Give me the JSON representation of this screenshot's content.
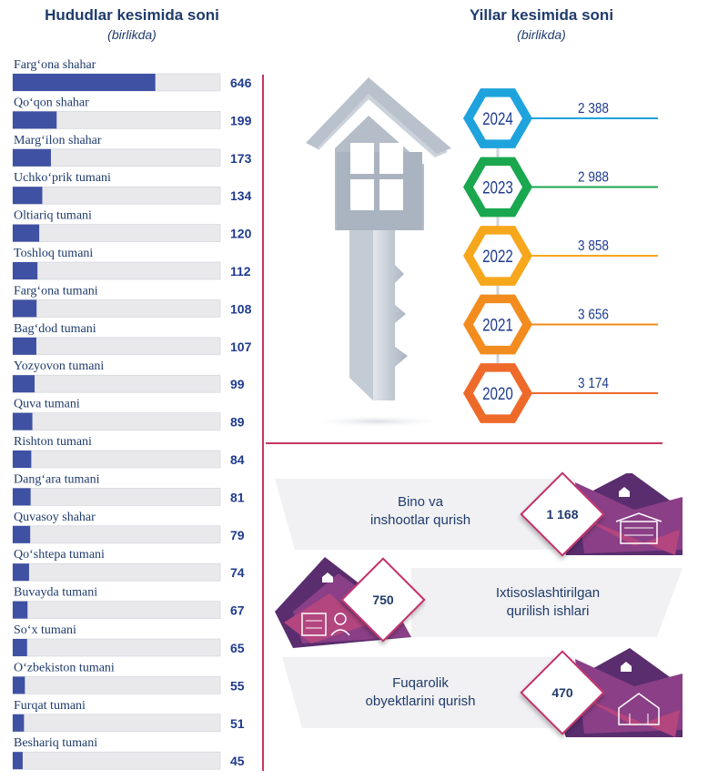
{
  "left": {
    "title": "Hududlar kesimida soni",
    "subtitle": "(birlikda)"
  },
  "right": {
    "title": "Yillar kesimida soni",
    "subtitle": "(birlikda)"
  },
  "chart_data": [
    {
      "type": "bar",
      "orientation": "horizontal",
      "categories": [
        "Farg‘ona shahar",
        "Qo‘qon shahar",
        "Marg‘ilon shahar",
        "Uchko‘prik tumani",
        "Oltiariq tumani",
        "Toshloq tumani",
        "Farg‘ona tumani",
        "Bag‘dod tumani",
        "Yozyovon tumani",
        "Quva tumani",
        "Rishton tumani",
        "Dang‘ara tumani",
        "Quvasoy shahar",
        "Qo‘shtepa tumani",
        "Buvayda tumani",
        "So‘x tumani",
        "O‘zbekiston tumani",
        "Furqat tumani",
        "Beshariq tumani"
      ],
      "values": [
        646,
        199,
        173,
        134,
        120,
        112,
        108,
        107,
        99,
        89,
        84,
        81,
        79,
        74,
        67,
        65,
        55,
        51,
        45
      ],
      "colors": {
        "bar": "#3f51a3",
        "track": "#e9e9ec",
        "label": "#1f3b6b",
        "value": "#1f3b8f"
      }
    },
    {
      "type": "table",
      "years": [
        "2024",
        "2023",
        "2022",
        "2021",
        "2020"
      ],
      "values": [
        "2 388",
        "2 988",
        "3 858",
        "3 656",
        "3 174"
      ],
      "colors": [
        "#1fa3dd",
        "#1aa74f",
        "#f6a71c",
        "#f28c1e",
        "#ee6a2b"
      ]
    },
    {
      "type": "table",
      "rows": [
        {
          "label_line1": "Bino va",
          "label_line2": "inshootlar qurish",
          "value": "1 168",
          "icon": "building-icon"
        },
        {
          "label_line1": "Ixtisoslashtirilgan",
          "label_line2": "qurilish ishlari",
          "value": "750",
          "icon": "construction-crane-icon"
        },
        {
          "label_line1": "Fuqarolik",
          "label_line2": "obyektlarini qurish",
          "value": "470",
          "icon": "house-icon"
        }
      ]
    }
  ]
}
